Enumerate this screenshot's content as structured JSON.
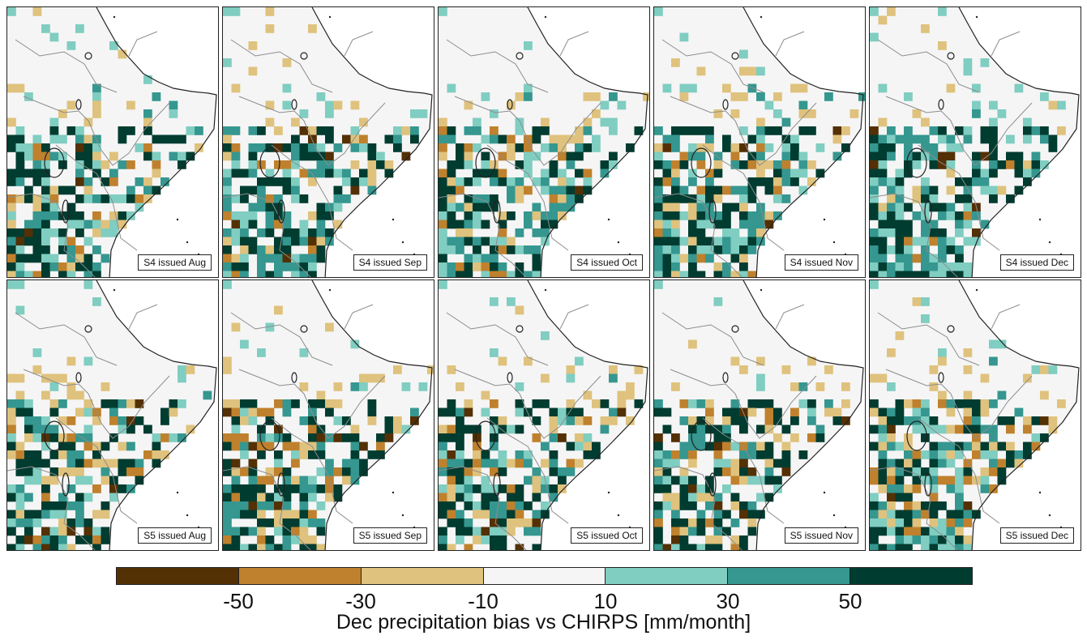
{
  "figure": {
    "colorbar_label": "Dec precipitation bias vs CHIRPS [mm/month]",
    "colorbar": {
      "colors": [
        "#543005",
        "#bf812d",
        "#dfc27d",
        "#f5f5f5",
        "#80cdc1",
        "#35978f",
        "#003c30"
      ],
      "ticks": [
        "-50",
        "-30",
        "-10",
        "10",
        "30",
        "50"
      ]
    },
    "colors": {
      "land": "#f5f5f5",
      "ocean": "#ffffff",
      "border": "#8c8c8c",
      "coast": "#222222"
    }
  },
  "panels": [
    {
      "label": "S4 issued Aug",
      "seed": 11,
      "wet": 1.0
    },
    {
      "label": "S4 issued Sep",
      "seed": 23,
      "wet": 1.05
    },
    {
      "label": "S4 issued Oct",
      "seed": 37,
      "wet": 0.95
    },
    {
      "label": "S4 issued Nov",
      "seed": 41,
      "wet": 1.0
    },
    {
      "label": "S4 issued Dec",
      "seed": 53,
      "wet": 1.15
    },
    {
      "label": "S5 issued Aug",
      "seed": 61,
      "wet": 0.85
    },
    {
      "label": "S5 issued Sep",
      "seed": 73,
      "wet": 0.8
    },
    {
      "label": "S5 issued Oct",
      "seed": 89,
      "wet": 0.85
    },
    {
      "label": "S5 issued Nov",
      "seed": 97,
      "wet": 0.8
    },
    {
      "label": "S5 issued Dec",
      "seed": 101,
      "wet": 0.9
    }
  ]
}
